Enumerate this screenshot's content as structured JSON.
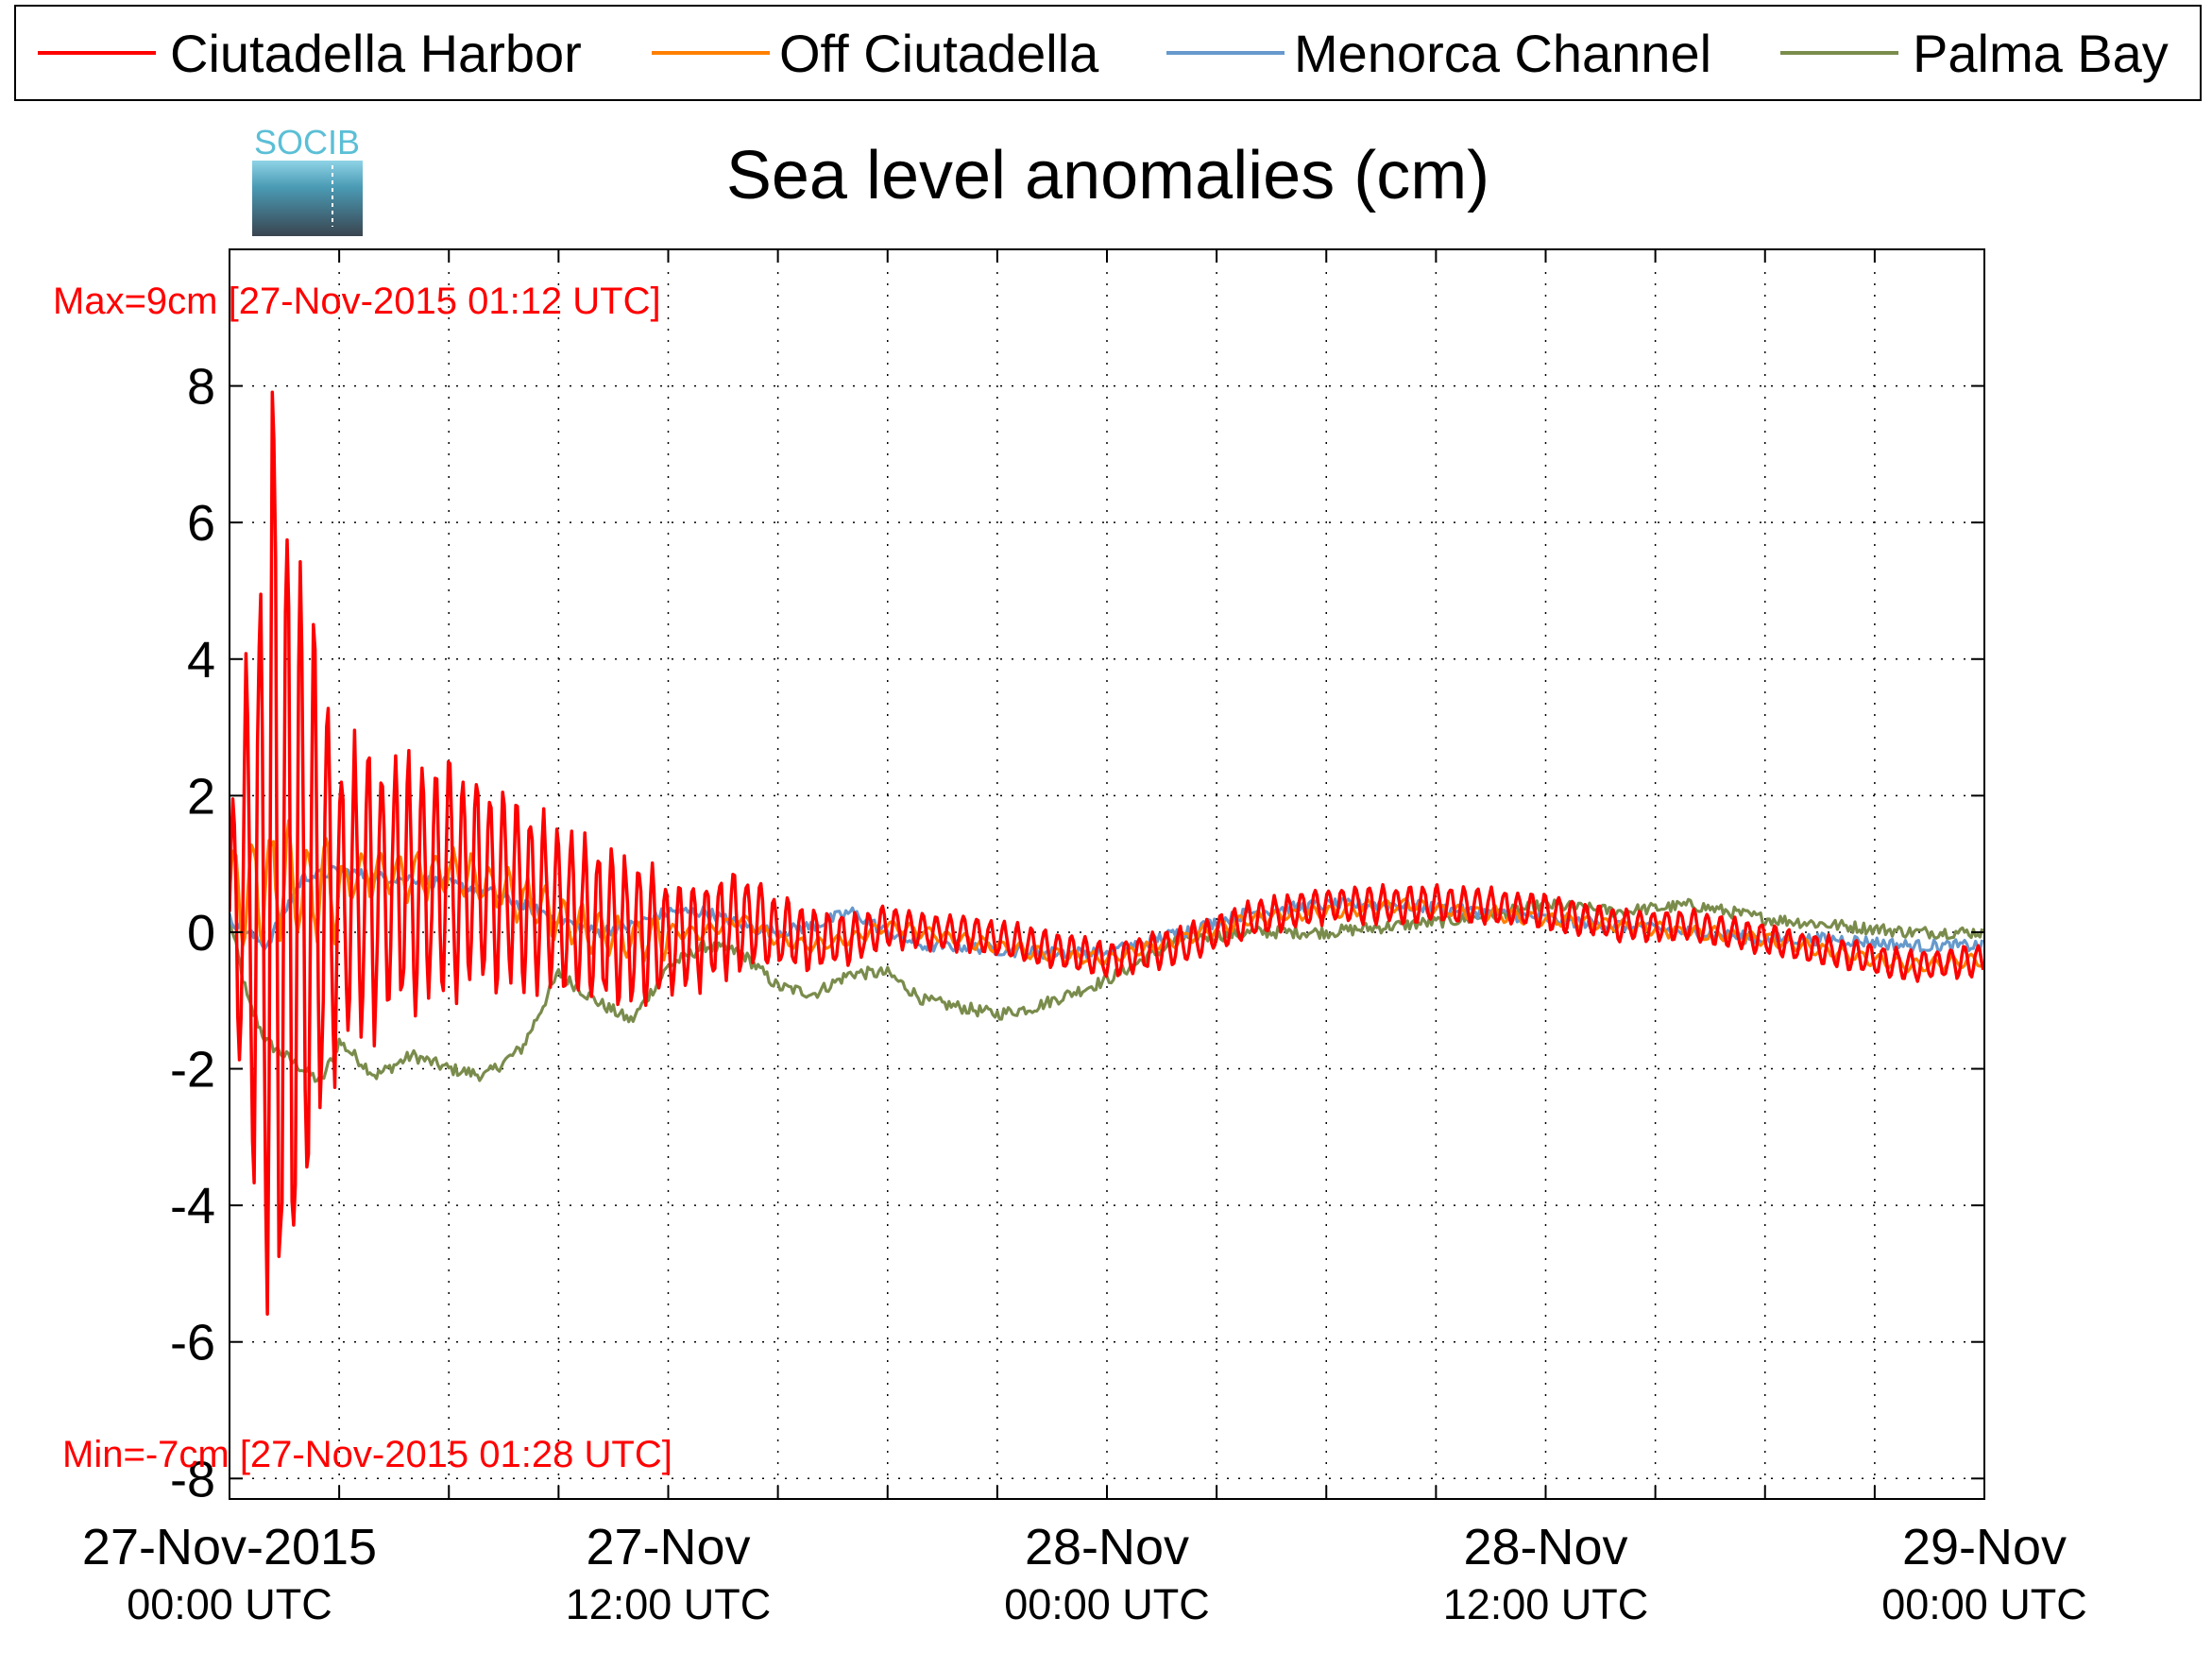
{
  "chart_data": {
    "type": "line",
    "title": "Sea level anomalies (cm)",
    "xlabel": "",
    "ylabel": "",
    "ylim": [
      -8.3,
      10.0
    ],
    "xlim": [
      "2015-11-27 00:00 UTC",
      "2015-11-29 00:00 UTC"
    ],
    "yticks": [
      8,
      6,
      4,
      2,
      0,
      -2,
      -4,
      -6,
      -8
    ],
    "xticks": [
      {
        "label": "27-Nov-2015",
        "sub": "00:00 UTC",
        "x": "2015-11-27 00:00"
      },
      {
        "label": "27-Nov",
        "sub": "12:00 UTC",
        "x": "2015-11-27 12:00"
      },
      {
        "label": "28-Nov",
        "sub": "00:00 UTC",
        "x": "2015-11-28 00:00"
      },
      {
        "label": "28-Nov",
        "sub": "12:00 UTC",
        "x": "2015-11-28 12:00"
      },
      {
        "label": "29-Nov",
        "sub": "00:00 UTC",
        "x": "2015-11-29 00:00"
      }
    ],
    "grid": true,
    "legend_position": "top",
    "annotations": {
      "max": "Max=9cm [27-Nov-2015 01:12 UTC]",
      "min": "Min=-7cm [27-Nov-2015 01:28 UTC]"
    },
    "series": [
      {
        "name": "Ciutadella Harbor",
        "color": "#ff0000",
        "x_hours": [
          0,
          1,
          1.2,
          1.5,
          2,
          2.5,
          3,
          4,
          5,
          6,
          7,
          8,
          9,
          10,
          11,
          12,
          13,
          14,
          15,
          16,
          17,
          18,
          19,
          20,
          22,
          24,
          26,
          28,
          30,
          32,
          34,
          36,
          38,
          40,
          42,
          44,
          46,
          48
        ],
        "envelope": [
          1.5,
          6.5,
          8.5,
          7.5,
          5.0,
          4.0,
          2.5,
          2.5,
          2.0,
          2.0,
          1.7,
          1.5,
          1.4,
          1.3,
          1.2,
          1.0,
          0.9,
          0.8,
          0.6,
          0.5,
          0.4,
          0.35,
          0.3,
          0.3,
          0.3,
          0.3,
          0.3,
          0.3,
          0.3,
          0.3,
          0.3,
          0.3,
          0.25,
          0.25,
          0.25,
          0.25,
          0.25,
          0.25
        ],
        "values": [
          0.3,
          0.8,
          1.0,
          0.6,
          0.4,
          0.5,
          0.5,
          0.6,
          0.7,
          0.8,
          0.7,
          0.6,
          0.3,
          0.1,
          0.0,
          -0.1,
          0.0,
          0.2,
          0.0,
          -0.1,
          -0.1,
          0.1,
          0.0,
          0.0,
          -0.2,
          -0.4,
          -0.2,
          0.2,
          0.4,
          0.4,
          0.4,
          0.3,
          0.1,
          0.1,
          -0.1,
          -0.3,
          -0.5,
          -0.4
        ]
      },
      {
        "name": "Off Ciutadella",
        "color": "#ff8000",
        "x_hours": [
          0,
          1,
          2,
          3,
          4,
          5,
          6,
          7,
          8,
          9,
          10,
          11,
          12,
          13,
          14,
          15,
          16,
          17,
          18,
          19,
          20,
          22,
          24,
          26,
          28,
          30,
          32,
          34,
          36,
          38,
          40,
          42,
          44,
          46,
          48
        ],
        "values": [
          0.5,
          0.8,
          0.6,
          0.7,
          0.9,
          0.8,
          0.9,
          0.7,
          0.5,
          0.2,
          0.0,
          -0.1,
          0.0,
          0.0,
          0.2,
          -0.1,
          -0.2,
          -0.1,
          0.1,
          0.0,
          -0.1,
          -0.3,
          -0.4,
          -0.1,
          0.2,
          0.3,
          0.4,
          0.3,
          0.2,
          0.1,
          0.0,
          -0.1,
          -0.3,
          -0.5,
          -0.4
        ]
      },
      {
        "name": "Menorca Channel",
        "color": "#6699cc",
        "x_hours": [
          0,
          1,
          2,
          3,
          4,
          5,
          6,
          7,
          8,
          9,
          10,
          11,
          12,
          13,
          14,
          15,
          16,
          17,
          18,
          19,
          20,
          22,
          24,
          26,
          28,
          30,
          32,
          34,
          36,
          38,
          40,
          42,
          44,
          46,
          48
        ],
        "values": [
          0.2,
          -0.2,
          0.8,
          0.9,
          0.8,
          0.8,
          0.7,
          0.6,
          0.4,
          0.2,
          0.0,
          0.1,
          0.3,
          0.3,
          0.1,
          0.0,
          0.1,
          0.3,
          0.0,
          -0.2,
          -0.2,
          -0.3,
          -0.3,
          0.0,
          0.3,
          0.4,
          0.4,
          0.3,
          0.2,
          0.1,
          0.0,
          -0.1,
          -0.1,
          -0.2,
          -0.2
        ]
      },
      {
        "name": "Palma Bay",
        "color": "#7a8c4c",
        "x_hours": [
          0,
          0.5,
          1,
          1.5,
          2,
          2.5,
          3,
          4,
          5,
          6,
          7,
          8,
          9,
          10,
          11,
          12,
          13,
          14,
          15,
          16,
          17,
          18,
          19,
          20,
          21,
          22,
          23,
          24,
          25,
          26,
          28,
          30,
          32,
          34,
          36,
          38,
          40,
          42,
          44,
          46,
          48
        ],
        "values": [
          0.2,
          -1.0,
          -1.6,
          -1.8,
          -2.0,
          -2.2,
          -1.6,
          -2.1,
          -1.8,
          -2.0,
          -2.1,
          -1.7,
          -0.6,
          -1.0,
          -1.3,
          -0.5,
          -0.2,
          -0.3,
          -0.8,
          -0.9,
          -0.6,
          -0.6,
          -1.0,
          -1.1,
          -1.2,
          -1.1,
          -0.9,
          -0.7,
          -0.4,
          -0.1,
          0.0,
          0.0,
          0.1,
          0.2,
          0.4,
          0.3,
          0.4,
          0.2,
          0.1,
          0.0,
          0.0
        ]
      }
    ]
  },
  "logo": {
    "text": "SOCIB"
  }
}
